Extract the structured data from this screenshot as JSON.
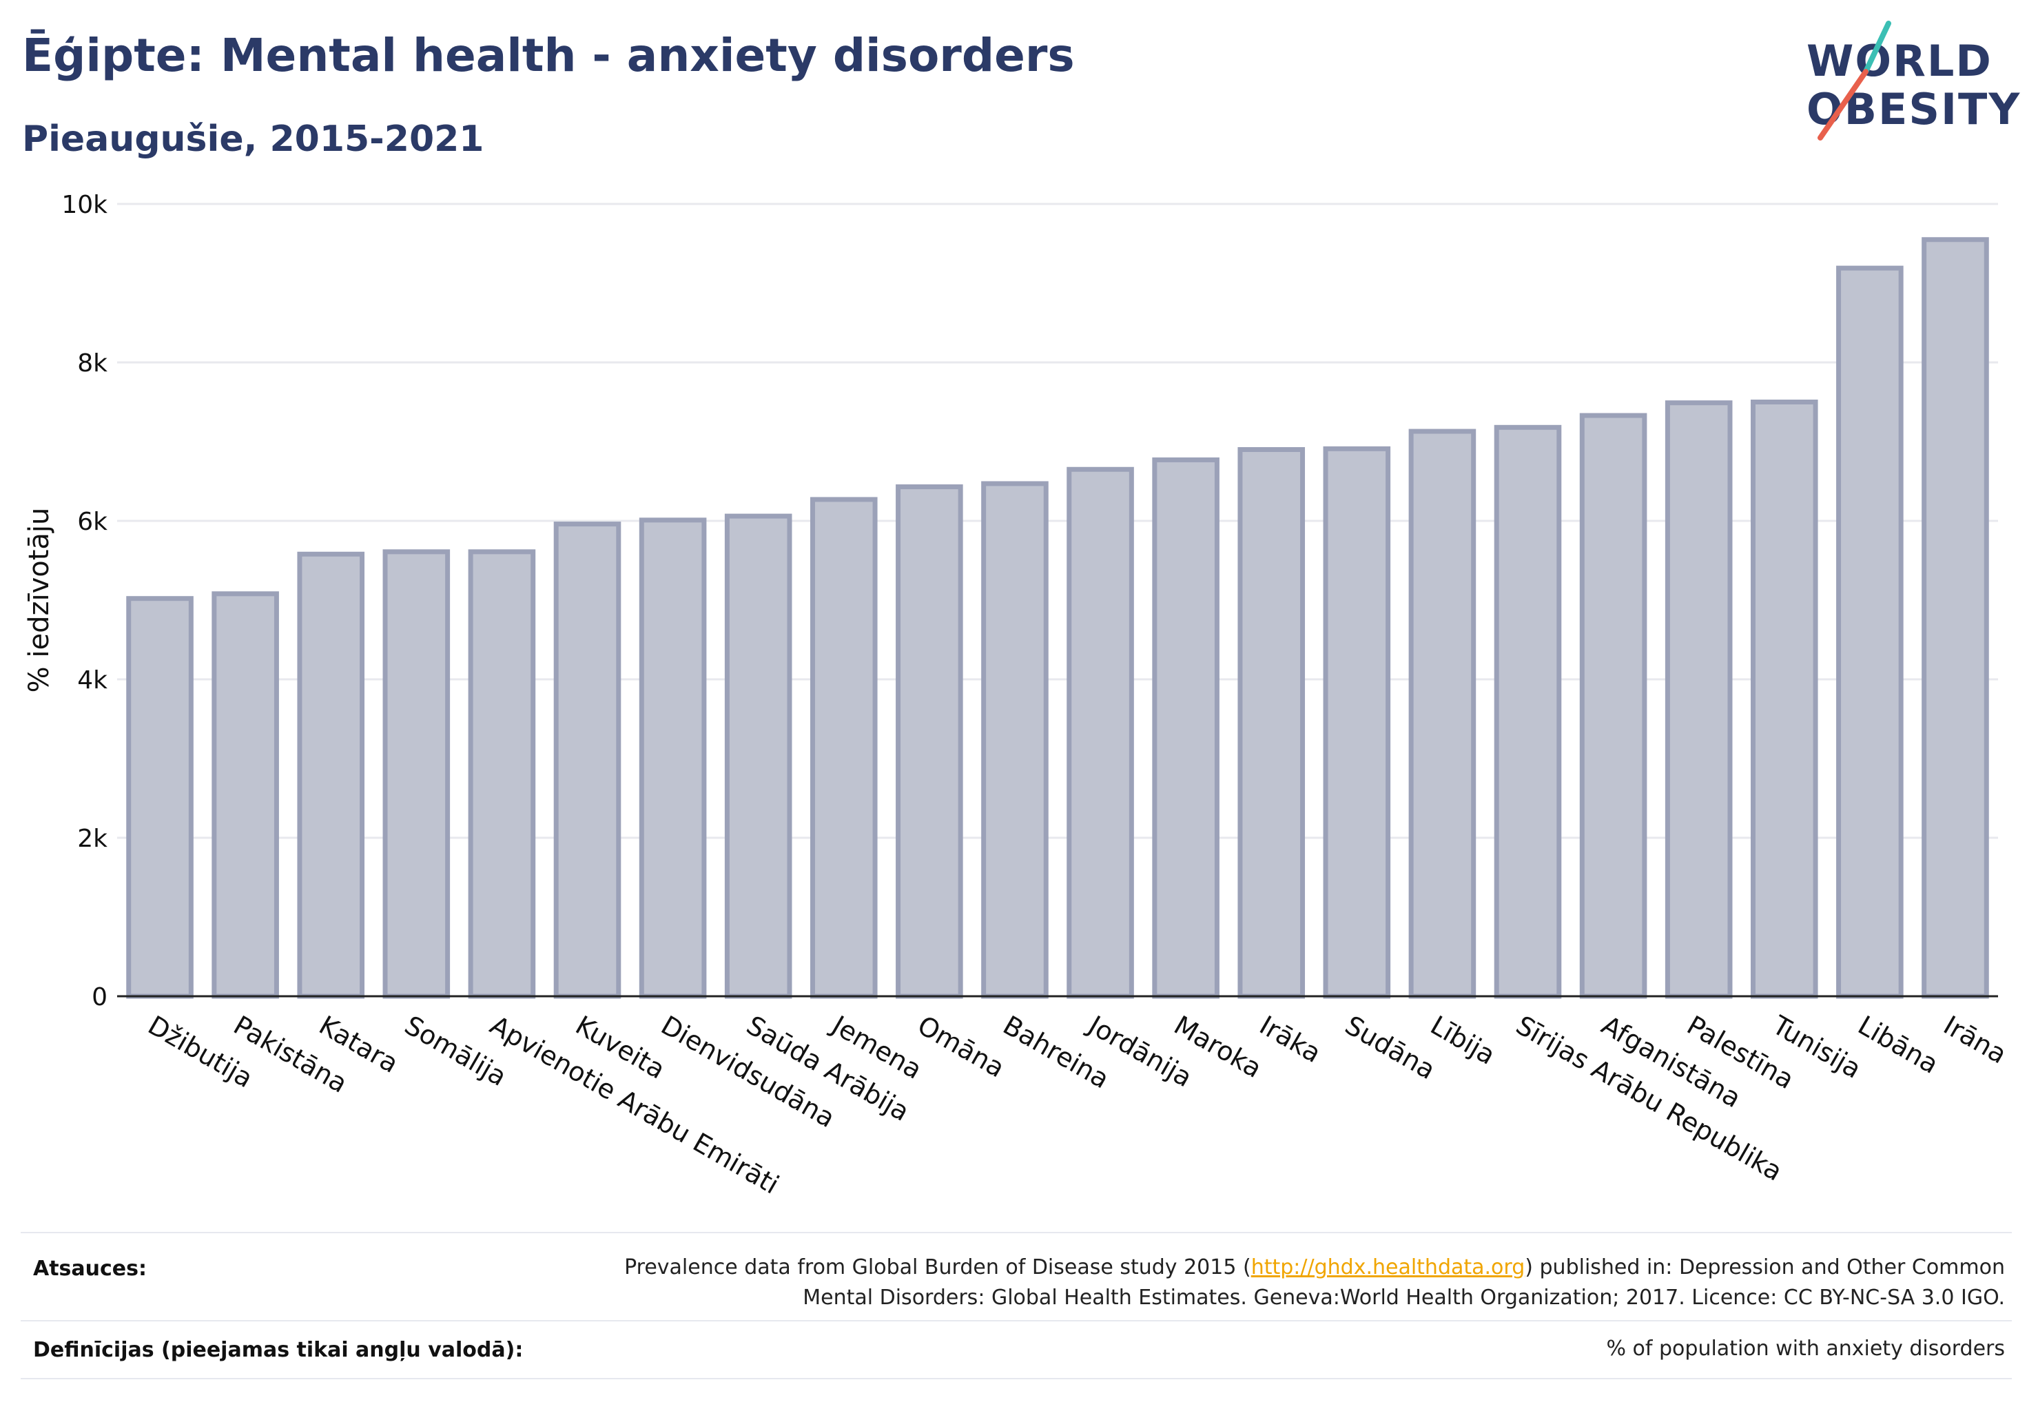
{
  "header": {
    "title": "Ēģipte: Mental health - anxiety disorders",
    "subtitle": "Pieaugušie, 2015-2021"
  },
  "logo": {
    "line1": "WORLD",
    "line2": "OBESITY",
    "text_color": "#2b3a67",
    "slash_colors": [
      "#3bbfb4",
      "#e8604c"
    ]
  },
  "chart_data": {
    "type": "bar",
    "categories": [
      "Džibutija",
      "Pakistāna",
      "Katara",
      "Somālija",
      "Apvienotie Arābu Emirāti",
      "Kuveita",
      "Dienvidsudāna",
      "Saūda Arābija",
      "Jemena",
      "Omāna",
      "Bahreina",
      "Jordānija",
      "Maroka",
      "Irāka",
      "Sudāna",
      "Lībija",
      "Sīrijas Arābu Republika",
      "Afganistāna",
      "Palestīna",
      "Tunisija",
      "Libāna",
      "Irāna"
    ],
    "values": [
      5020,
      5080,
      5580,
      5610,
      5610,
      5960,
      6010,
      6060,
      6270,
      6430,
      6470,
      6650,
      6770,
      6900,
      6910,
      7130,
      7180,
      7330,
      7490,
      7500,
      9190,
      9550
    ],
    "title": "",
    "xlabel": "",
    "ylabel": "% iedzīvotāju",
    "ylim": [
      0,
      10000
    ],
    "yticks": [
      0,
      2000,
      4000,
      6000,
      8000,
      10000
    ],
    "ytick_labels": [
      "0",
      "2k",
      "4k",
      "6k",
      "8k",
      "10k"
    ],
    "bar_fill": "#bfc3d0",
    "bar_stroke": "#9ba1b8",
    "grid": true
  },
  "footer": {
    "sources_label": "Atsauces:",
    "sources_text_before": "Prevalence data from Global Burden of Disease study 2015 (",
    "sources_link": "http://ghdx.healthdata.org",
    "sources_text_after": ") published in: Depression and Other Common",
    "sources_line2": "Mental Disorders: Global Health Estimates. Geneva:World Health Organization; 2017. Licence: CC BY-NC-SA 3.0 IGO.",
    "definitions_label": "Definīcijas (pieejamas tikai angļu valodā):",
    "definitions_text": "% of population with anxiety disorders"
  }
}
